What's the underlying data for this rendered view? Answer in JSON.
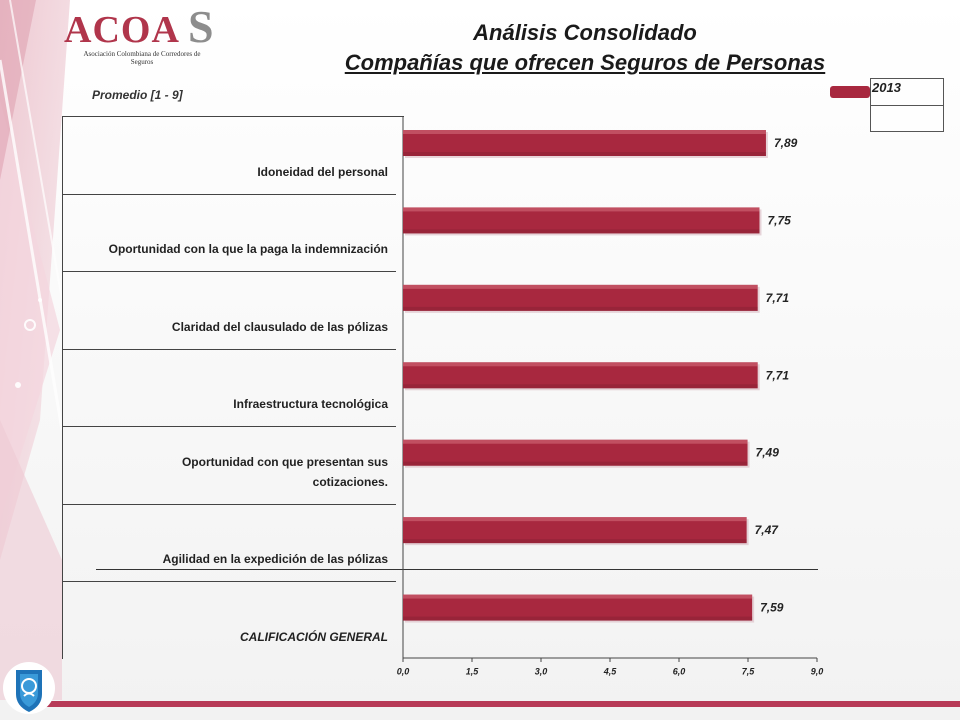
{
  "logo": {
    "main": "ACOA",
    "accent": "S",
    "subtitle": "Asociación Colombiana de Corredores de Seguros"
  },
  "header": {
    "title": "Análisis Consolidado",
    "subtitle": "Compañías que ofrecen Seguros de Personas"
  },
  "unit_label": "Promedio  [1 - 9]",
  "legend": {
    "label": "2013"
  },
  "colors": {
    "bar": "#a8283f",
    "bar_highlight": "#d5707e",
    "accent": "#b73a57"
  },
  "chart_data": {
    "type": "bar",
    "orientation": "horizontal",
    "categories": [
      "Idoneidad del personal",
      "Oportunidad con la que la paga la indemnización",
      "Claridad del clausulado de las pólizas",
      "Infraestructura tecnológica",
      "Oportunidad con que presentan sus cotizaciones.",
      "Agilidad en la expedición de las pólizas",
      "CALIFICACIÓN GENERAL"
    ],
    "series": [
      {
        "name": "2013",
        "values": [
          7.89,
          7.75,
          7.71,
          7.71,
          7.49,
          7.47,
          7.59
        ]
      }
    ],
    "value_labels": [
      "7,89",
      "7,75",
      "7,71",
      "7,71",
      "7,49",
      "7,47",
      "7,59"
    ],
    "xlim": [
      0,
      9
    ],
    "xticks": [
      "0,0",
      "1,5",
      "3,0",
      "4,5",
      "6,0",
      "7,5",
      "9,0"
    ],
    "grid": false,
    "legend_position": "top-right"
  }
}
